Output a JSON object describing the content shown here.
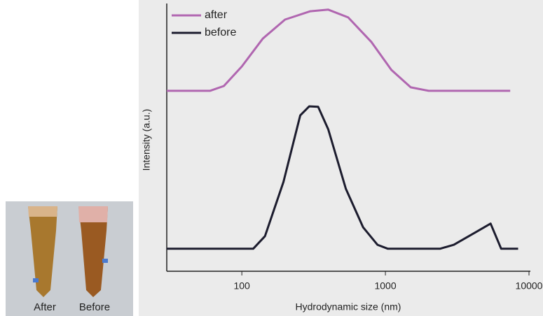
{
  "chart_data": {
    "type": "line",
    "xlabel": "Hydrodynamic size (nm)",
    "ylabel": "Intensity (a.u.)",
    "xscale": "log",
    "xlim": [
      30,
      10000
    ],
    "xticks": [
      100,
      1000,
      10000
    ],
    "ylim": [
      0,
      100
    ],
    "legend": "upper left",
    "series": [
      {
        "name": "after",
        "color": "#b066b0",
        "x": [
          30,
          60,
          75,
          100,
          140,
          200,
          300,
          400,
          550,
          800,
          1100,
          1500,
          2000,
          7400
        ],
        "values": [
          67.4,
          67.4,
          69.2,
          76.5,
          86.9,
          94.0,
          97.1,
          97.7,
          94.8,
          85.6,
          75.2,
          68.7,
          67.4,
          67.4
        ]
      },
      {
        "name": "before",
        "color": "#1c1c2e",
        "x": [
          30,
          120,
          145,
          195,
          255,
          295,
          340,
          400,
          530,
          700,
          880,
          1040,
          2400,
          3000,
          4200,
          5400,
          6400,
          8400
        ],
        "values": [
          8.4,
          8.4,
          13.1,
          33.4,
          58.2,
          61.6,
          61.4,
          53.0,
          30.8,
          16.4,
          9.9,
          8.4,
          8.4,
          9.9,
          14.4,
          17.8,
          8.4,
          8.4
        ]
      }
    ]
  },
  "photo": {
    "labels": [
      "After",
      "Before"
    ]
  }
}
